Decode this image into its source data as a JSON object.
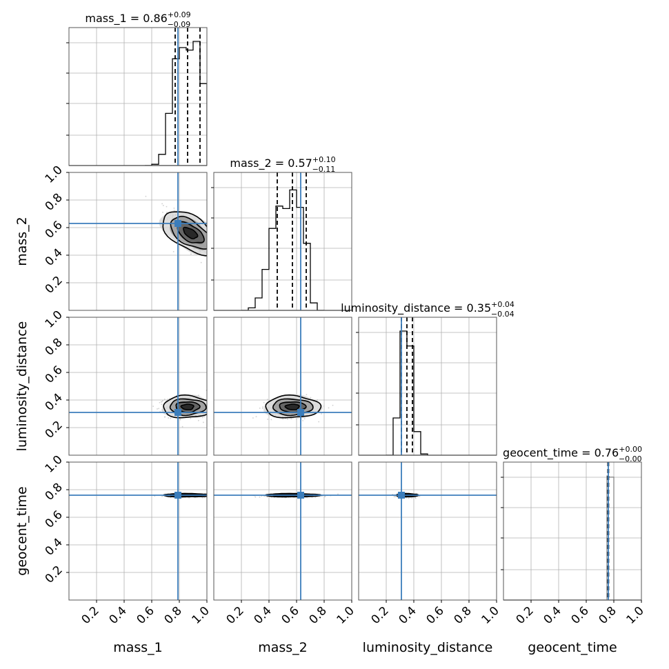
{
  "colors": {
    "truth": "#3b7dbb",
    "axes": "#000000",
    "grid": "#b0b0b0",
    "hist": "#000000",
    "background": "#ffffff"
  },
  "chart_data": {
    "type": "corner",
    "parameters": [
      "mass_1",
      "mass_2",
      "luminosity_distance",
      "geocent_time"
    ],
    "axis_labels": [
      "mass_1",
      "mass_2",
      "luminosity_distance",
      "geocent_time"
    ],
    "xlim": [
      0,
      1
    ],
    "ylim": [
      0,
      1
    ],
    "ticks": [
      0.2,
      0.4,
      0.6,
      0.8,
      1.0
    ],
    "tick_labels": [
      "0.2",
      "0.4",
      "0.6",
      "0.8",
      "1.0"
    ],
    "grid": true,
    "truths": [
      0.79,
      0.63,
      0.31,
      0.76
    ],
    "summaries": [
      {
        "prefix": "mass_1 = 0.86",
        "sup": "+0.09",
        "sub": "−0.09"
      },
      {
        "prefix": "mass_2 = 0.57",
        "sup": "+0.10",
        "sub": "−0.11"
      },
      {
        "prefix": "luminosity_distance = 0.35",
        "sup": "+0.04",
        "sub": "−0.04"
      },
      {
        "prefix": "geocent_time = 0.76",
        "sup": "+0.00",
        "sub": "−0.00"
      }
    ],
    "quantiles": [
      [
        0.77,
        0.86,
        0.95
      ],
      [
        0.46,
        0.57,
        0.67
      ],
      [
        0.31,
        0.35,
        0.39
      ],
      [
        0.757,
        0.76,
        0.762
      ]
    ],
    "histograms": [
      {
        "edges": [
          0.55,
          0.6,
          0.65,
          0.7,
          0.75,
          0.8,
          0.85,
          0.9,
          0.95,
          1.0
        ],
        "counts": [
          0.0,
          0.01,
          0.09,
          0.42,
          0.86,
          0.95,
          0.93,
          1.0,
          0.66
        ]
      },
      {
        "edges": [
          0.2,
          0.25,
          0.3,
          0.35,
          0.4,
          0.45,
          0.5,
          0.55,
          0.6,
          0.65,
          0.7,
          0.75,
          0.8
        ],
        "counts": [
          0.0,
          0.02,
          0.1,
          0.33,
          0.66,
          0.84,
          0.82,
          0.97,
          0.83,
          0.54,
          0.06,
          0.0
        ]
      },
      {
        "edges": [
          0.2,
          0.25,
          0.3,
          0.35,
          0.4,
          0.45,
          0.5
        ],
        "counts": [
          0.0,
          0.3,
          1.0,
          0.88,
          0.19,
          0.01
        ]
      },
      {
        "edges": [
          0.74,
          0.75,
          0.76,
          0.77,
          0.8
        ],
        "counts": [
          0.0,
          1.0,
          0.99,
          0.99
        ]
      }
    ],
    "panels_2d": [
      {
        "x": "mass_1",
        "y": "mass_2",
        "center": [
          0.88,
          0.56
        ],
        "spread": [
          0.09,
          0.09
        ],
        "corr": -0.75
      },
      {
        "x": "mass_1",
        "y": "luminosity_distance",
        "center": [
          0.86,
          0.35
        ],
        "spread": [
          0.09,
          0.04
        ],
        "corr": 0.0
      },
      {
        "x": "mass_2",
        "y": "luminosity_distance",
        "center": [
          0.57,
          0.35
        ],
        "spread": [
          0.1,
          0.04
        ],
        "corr": 0.0
      },
      {
        "x": "mass_1",
        "y": "geocent_time",
        "center": [
          0.86,
          0.76
        ],
        "spread": [
          0.09,
          0.006
        ],
        "corr": 0.0
      },
      {
        "x": "mass_2",
        "y": "geocent_time",
        "center": [
          0.57,
          0.76
        ],
        "spread": [
          0.1,
          0.006
        ],
        "corr": 0.0
      },
      {
        "x": "luminosity_distance",
        "y": "geocent_time",
        "center": [
          0.35,
          0.76
        ],
        "spread": [
          0.04,
          0.006
        ],
        "corr": 0.0
      }
    ]
  }
}
